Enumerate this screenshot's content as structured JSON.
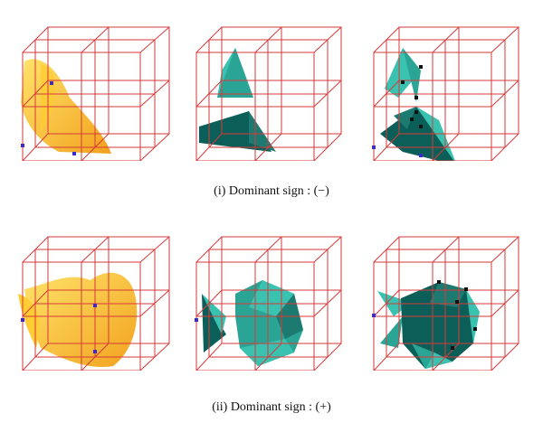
{
  "figure": {
    "rows": [
      {
        "caption": "(i) Dominant sign : (−)",
        "panels": [
          {
            "name": "isosurface",
            "style": "yellow-surface"
          },
          {
            "name": "mesh-separated",
            "style": "teal-polygons"
          },
          {
            "name": "mesh-with-vertices",
            "style": "teal-polygons-vertices"
          }
        ]
      },
      {
        "caption": "(ii) Dominant sign : (+)",
        "panels": [
          {
            "name": "isosurface",
            "style": "yellow-surface"
          },
          {
            "name": "mesh-joined",
            "style": "teal-polygons"
          },
          {
            "name": "mesh-with-vertices",
            "style": "teal-polygons-vertices"
          }
        ]
      }
    ],
    "colors": {
      "grid": "#d63a3a",
      "surface_light": "#ffd84a",
      "surface_dark": "#f0a020",
      "teal_light": "#3ac2b0",
      "teal_dark": "#0c5e58",
      "vertex_blue": "#3a2ad0",
      "vertex_black": "#111111"
    }
  }
}
